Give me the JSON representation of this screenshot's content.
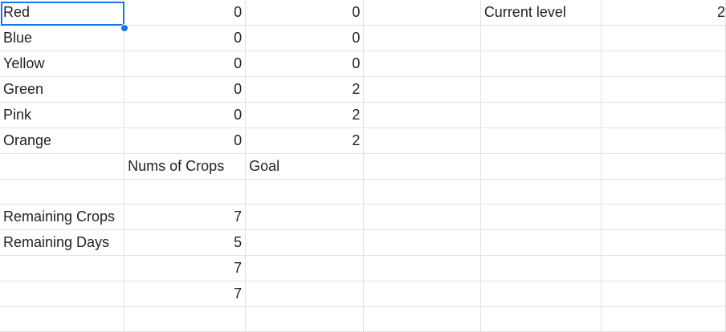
{
  "rows": [
    {
      "a": "Red",
      "b": "0",
      "c": "0",
      "d": "",
      "e": "Current level",
      "f": "2"
    },
    {
      "a": "Blue",
      "b": "0",
      "c": "0",
      "d": "",
      "e": "",
      "f": ""
    },
    {
      "a": "Yellow",
      "b": "0",
      "c": "0",
      "d": "",
      "e": "",
      "f": ""
    },
    {
      "a": "Green",
      "b": "0",
      "c": "2",
      "d": "",
      "e": "",
      "f": ""
    },
    {
      "a": "Pink",
      "b": "0",
      "c": "2",
      "d": "",
      "e": "",
      "f": ""
    },
    {
      "a": "Orange",
      "b": "0",
      "c": "2",
      "d": "",
      "e": "",
      "f": ""
    },
    {
      "a": "",
      "b": "Nums of Crops",
      "c": "Goal",
      "d": "",
      "e": "",
      "f": ""
    },
    {
      "a": "",
      "b": "",
      "c": "",
      "d": "",
      "e": "",
      "f": ""
    },
    {
      "a": "Remaining Crops",
      "b": "7",
      "c": "",
      "d": "",
      "e": "",
      "f": ""
    },
    {
      "a": "Remaining Days",
      "b": "5",
      "c": "",
      "d": "",
      "e": "",
      "f": ""
    },
    {
      "a": "",
      "b": "7",
      "c": "",
      "d": "",
      "e": "",
      "f": ""
    },
    {
      "a": "",
      "b": "7",
      "c": "",
      "d": "",
      "e": "",
      "f": ""
    },
    {
      "a": "",
      "b": "",
      "c": "",
      "d": "",
      "e": "",
      "f": ""
    }
  ],
  "selection": {
    "cell": "A1",
    "color": "#1a73e8"
  }
}
